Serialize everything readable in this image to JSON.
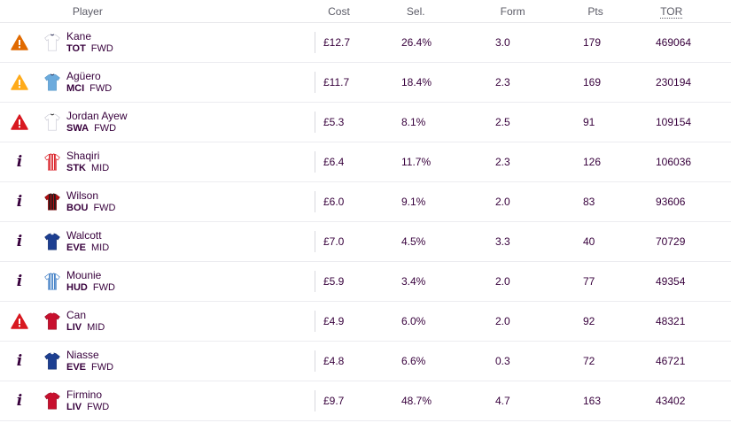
{
  "columns": {
    "player": "Player",
    "cost": "Cost",
    "sel": "Sel.",
    "form": "Form",
    "pts": "Pts",
    "tor": "TOR"
  },
  "status_colors": {
    "warning_high": "#d81920",
    "warning_mid": "#e16a00",
    "warning_low": "#ffab1b",
    "info": "#37003c"
  },
  "players": [
    {
      "status": "warning-mid",
      "shirt": "tot",
      "name": "Kane",
      "team": "TOT",
      "pos": "FWD",
      "cost": "£12.7",
      "sel": "26.4%",
      "form": "3.0",
      "pts": "179",
      "tor": "469064"
    },
    {
      "status": "warning-low",
      "shirt": "mci",
      "name": "Agüero",
      "team": "MCI",
      "pos": "FWD",
      "cost": "£11.7",
      "sel": "18.4%",
      "form": "2.3",
      "pts": "169",
      "tor": "230194"
    },
    {
      "status": "warning-high",
      "shirt": "swa",
      "name": "Jordan Ayew",
      "team": "SWA",
      "pos": "FWD",
      "cost": "£5.3",
      "sel": "8.1%",
      "form": "2.5",
      "pts": "91",
      "tor": "109154"
    },
    {
      "status": "info",
      "shirt": "stk",
      "name": "Shaqiri",
      "team": "STK",
      "pos": "MID",
      "cost": "£6.4",
      "sel": "11.7%",
      "form": "2.3",
      "pts": "126",
      "tor": "106036"
    },
    {
      "status": "info",
      "shirt": "bou",
      "name": "Wilson",
      "team": "BOU",
      "pos": "FWD",
      "cost": "£6.0",
      "sel": "9.1%",
      "form": "2.0",
      "pts": "83",
      "tor": "93606"
    },
    {
      "status": "info",
      "shirt": "eve",
      "name": "Walcott",
      "team": "EVE",
      "pos": "MID",
      "cost": "£7.0",
      "sel": "4.5%",
      "form": "3.3",
      "pts": "40",
      "tor": "70729"
    },
    {
      "status": "info",
      "shirt": "hud",
      "name": "Mounie",
      "team": "HUD",
      "pos": "FWD",
      "cost": "£5.9",
      "sel": "3.4%",
      "form": "2.0",
      "pts": "77",
      "tor": "49354"
    },
    {
      "status": "warning-high",
      "shirt": "liv",
      "name": "Can",
      "team": "LIV",
      "pos": "MID",
      "cost": "£4.9",
      "sel": "6.0%",
      "form": "2.0",
      "pts": "92",
      "tor": "48321"
    },
    {
      "status": "info",
      "shirt": "eve",
      "name": "Niasse",
      "team": "EVE",
      "pos": "FWD",
      "cost": "£4.8",
      "sel": "6.6%",
      "form": "0.3",
      "pts": "72",
      "tor": "46721"
    },
    {
      "status": "info",
      "shirt": "liv",
      "name": "Firmino",
      "team": "LIV",
      "pos": "FWD",
      "cost": "£9.7",
      "sel": "48.7%",
      "form": "4.7",
      "pts": "163",
      "tor": "43402"
    }
  ]
}
